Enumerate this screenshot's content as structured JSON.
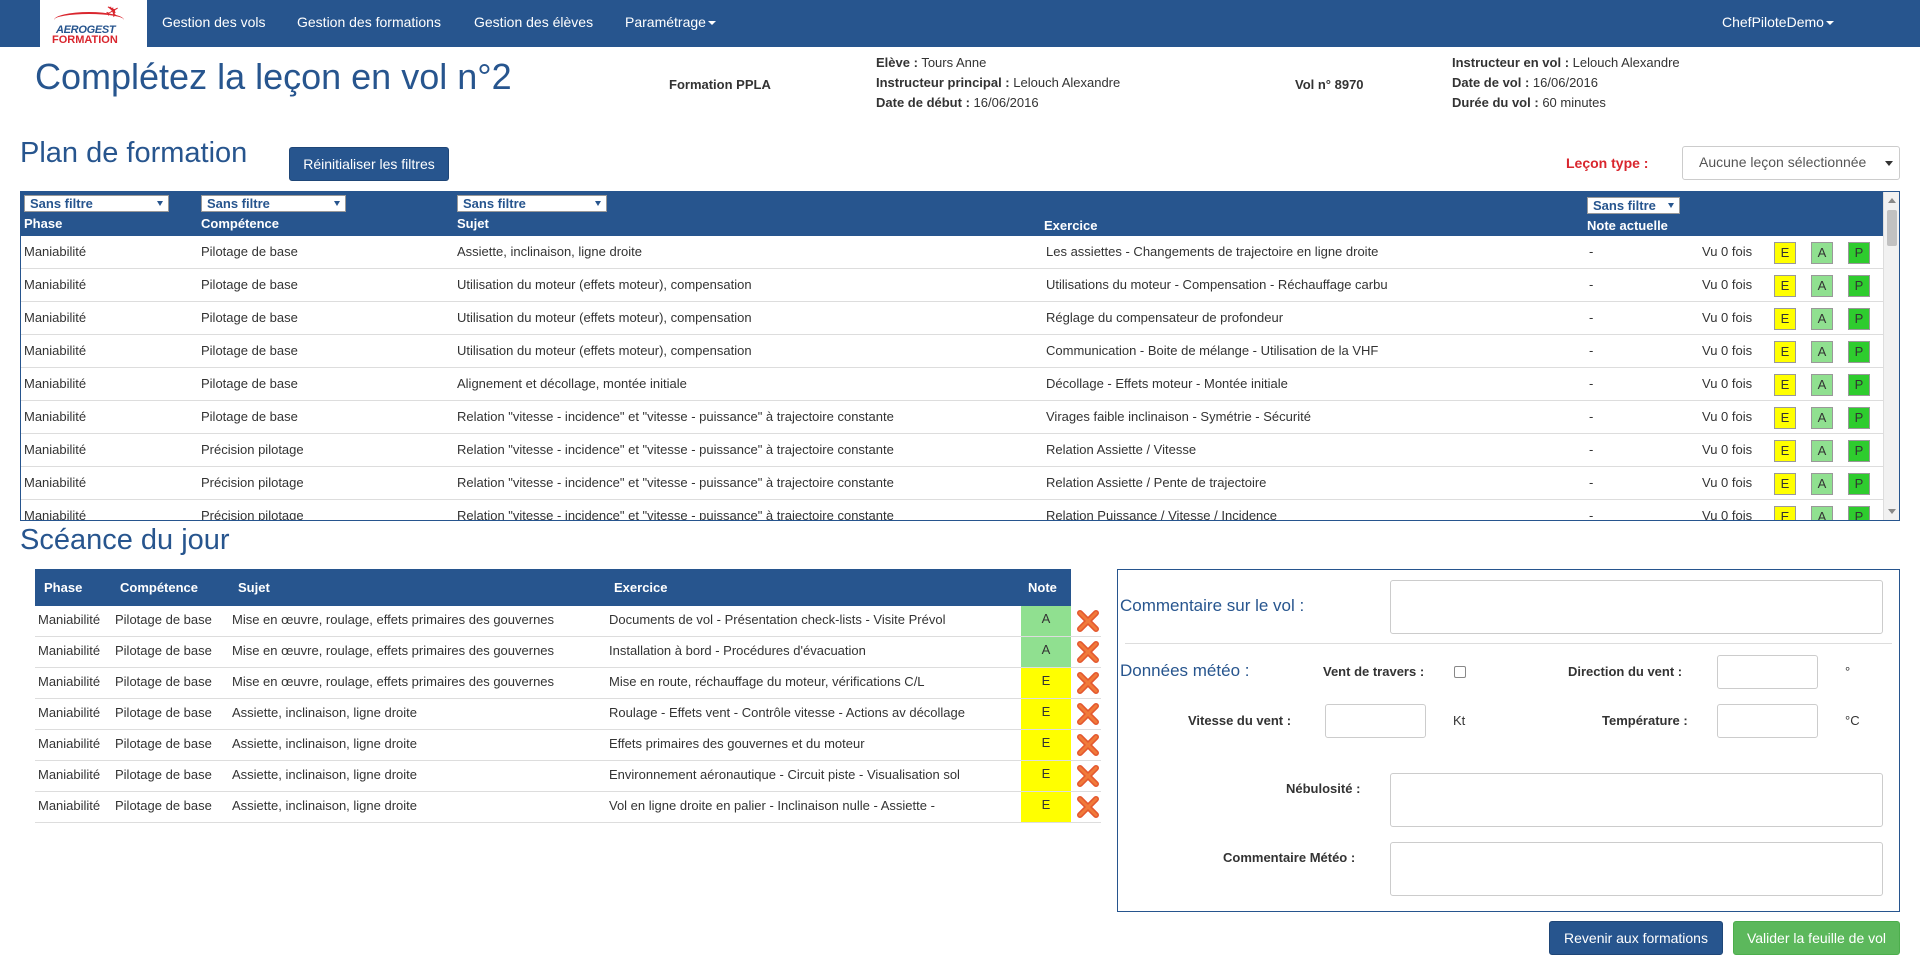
{
  "nav": {
    "logo_line1": "AEROGEST",
    "logo_line2": "FORMATION",
    "items": [
      "Gestion des vols",
      "Gestion des formations",
      "Gestion des élèves",
      "Paramétrage"
    ],
    "user": "ChefPiloteDemo"
  },
  "header": {
    "title": "Complétez la leçon en vol n°2",
    "formation": "Formation PPLA",
    "eleve_label": "Elève :",
    "eleve_value": "Tours Anne",
    "instr_principal_label": "Instructeur principal :",
    "instr_principal_value": "Lelouch Alexandre",
    "date_debut_label": "Date de début :",
    "date_debut_value": "16/06/2016",
    "vol_no": "Vol n° 8970",
    "instr_vol_label": "Instructeur en vol :",
    "instr_vol_value": "Lelouch Alexandre",
    "date_vol_label": "Date de vol :",
    "date_vol_value": "16/06/2016",
    "duree_label": "Durée du vol :",
    "duree_value": "60 minutes"
  },
  "plan": {
    "title": "Plan de formation",
    "reset_button": "Réinitialiser les filtres",
    "lecon_type_label": "Leçon type :",
    "lecon_type_value": "Aucune leçon sélectionnée",
    "filter_label": "Sans filtre",
    "columns": {
      "phase": "Phase",
      "competence": "Compétence",
      "sujet": "Sujet",
      "exercice": "Exercice",
      "note": "Note actuelle"
    },
    "rows": [
      {
        "phase": "Maniabilité",
        "competence": "Pilotage de base",
        "sujet": "Assiette, inclinaison, ligne droite",
        "exercice": "Les assiettes - Changements de trajectoire en ligne droite",
        "note": "-",
        "vu": "Vu 0 fois"
      },
      {
        "phase": "Maniabilité",
        "competence": "Pilotage de base",
        "sujet": "Utilisation du moteur (effets moteur), compensation",
        "exercice": "Utilisations du moteur - Compensation - Réchauffage carbu",
        "note": "-",
        "vu": "Vu 0 fois"
      },
      {
        "phase": "Maniabilité",
        "competence": "Pilotage de base",
        "sujet": "Utilisation du moteur (effets moteur), compensation",
        "exercice": "Réglage du compensateur de profondeur",
        "note": "-",
        "vu": "Vu 0 fois"
      },
      {
        "phase": "Maniabilité",
        "competence": "Pilotage de base",
        "sujet": "Utilisation du moteur (effets moteur), compensation",
        "exercice": "Communication - Boite de mélange - Utilisation de la VHF",
        "note": "-",
        "vu": "Vu 0 fois"
      },
      {
        "phase": "Maniabilité",
        "competence": "Pilotage de base",
        "sujet": "Alignement et décollage, montée initiale",
        "exercice": "Décollage - Effets moteur - Montée initiale",
        "note": "-",
        "vu": "Vu 0 fois"
      },
      {
        "phase": "Maniabilité",
        "competence": "Pilotage de base",
        "sujet": "Relation \"vitesse - incidence\" et \"vitesse - puissance\" à trajectoire constante",
        "exercice": "Virages faible inclinaison - Symétrie - Sécurité",
        "note": "-",
        "vu": "Vu 0 fois"
      },
      {
        "phase": "Maniabilité",
        "competence": "Précision pilotage",
        "sujet": "Relation \"vitesse - incidence\" et \"vitesse - puissance\" à trajectoire constante",
        "exercice": "Relation Assiette / Vitesse",
        "note": "-",
        "vu": "Vu 0 fois"
      },
      {
        "phase": "Maniabilité",
        "competence": "Précision pilotage",
        "sujet": "Relation \"vitesse - incidence\" et \"vitesse - puissance\" à trajectoire constante",
        "exercice": "Relation Assiette / Pente de trajectoire",
        "note": "-",
        "vu": "Vu 0 fois"
      },
      {
        "phase": "Maniabilité",
        "competence": "Précision pilotage",
        "sujet": "Relation \"vitesse - incidence\" et \"vitesse - puissance\" à trajectoire constante",
        "exercice": "Relation Puissance / Vitesse / Incidence",
        "note": "-",
        "vu": "Vu 0 fois"
      }
    ],
    "grade_buttons": [
      "E",
      "A",
      "P"
    ]
  },
  "seance": {
    "title": "Scéance du jour",
    "columns": {
      "phase": "Phase",
      "competence": "Compétence",
      "sujet": "Sujet",
      "exercice": "Exercice",
      "note": "Note"
    },
    "rows": [
      {
        "phase": "Maniabilité",
        "competence": "Pilotage de base",
        "sujet": "Mise en œuvre, roulage, effets primaires des gouvernes",
        "exercice": "Documents de vol - Présentation check-lists - Visite Prévol",
        "note": "A"
      },
      {
        "phase": "Maniabilité",
        "competence": "Pilotage de base",
        "sujet": "Mise en œuvre, roulage, effets primaires des gouvernes",
        "exercice": "Installation à bord - Procédures d'évacuation",
        "note": "A"
      },
      {
        "phase": "Maniabilité",
        "competence": "Pilotage de base",
        "sujet": "Mise en œuvre, roulage, effets primaires des gouvernes",
        "exercice": "Mise en route, réchauffage du moteur, vérifications C/L",
        "note": "E"
      },
      {
        "phase": "Maniabilité",
        "competence": "Pilotage de base",
        "sujet": "Assiette, inclinaison, ligne droite",
        "exercice": "Roulage - Effets vent - Contrôle vitesse - Actions av décollage",
        "note": "E"
      },
      {
        "phase": "Maniabilité",
        "competence": "Pilotage de base",
        "sujet": "Assiette, inclinaison, ligne droite",
        "exercice": "Effets primaires des gouvernes et du moteur",
        "note": "E"
      },
      {
        "phase": "Maniabilité",
        "competence": "Pilotage de base",
        "sujet": "Assiette, inclinaison, ligne droite",
        "exercice": "Environnement aéronautique - Circuit piste - Visualisation sol",
        "note": "E"
      },
      {
        "phase": "Maniabilité",
        "competence": "Pilotage de base",
        "sujet": "Assiette, inclinaison, ligne droite",
        "exercice": "Vol en ligne droite en palier - Inclinaison nulle - Assiette -",
        "note": "E"
      }
    ]
  },
  "panel": {
    "commentaire_vol_label": "Commentaire sur le vol :",
    "meteo_label": "Données météo :",
    "vent_travers_label": "Vent de travers :",
    "direction_vent_label": "Direction du vent :",
    "direction_unit": "°",
    "vitesse_vent_label": "Vitesse du vent :",
    "vitesse_unit": "Kt",
    "temperature_label": "Température :",
    "temperature_unit": "°C",
    "nebulosite_label": "Nébulosité :",
    "commentaire_meteo_label": "Commentaire Météo :"
  },
  "footer": {
    "back_button": "Revenir aux formations",
    "validate_button": "Valider la feuille de vol"
  },
  "colors": {
    "primary": "#27558e",
    "note_E": "#ffff00",
    "note_A": "#90e090",
    "note_P": "#2ecc2e",
    "danger": "#d9262e"
  }
}
